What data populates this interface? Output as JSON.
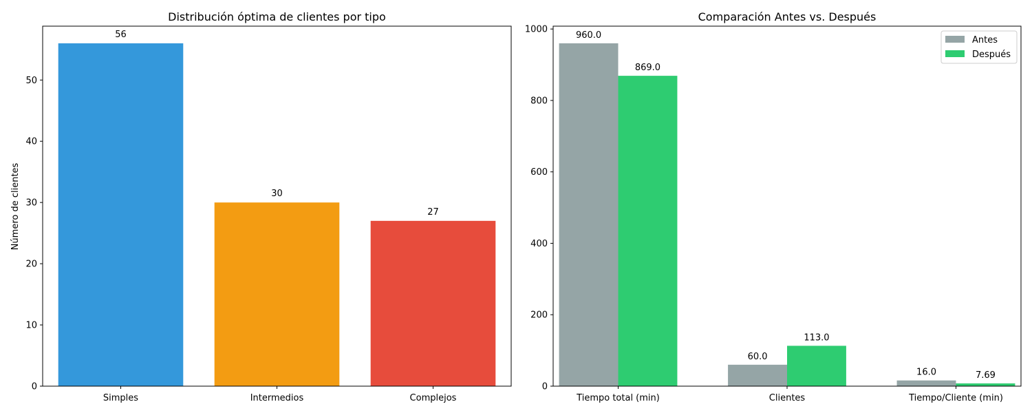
{
  "chart_data": [
    {
      "type": "bar",
      "title": "Distribución óptima de clientes por tipo",
      "xlabel": "",
      "ylabel": "Número de clientes",
      "categories": [
        "Simples",
        "Intermedios",
        "Complejos"
      ],
      "values": [
        56,
        30,
        27
      ],
      "value_labels": [
        "56",
        "30",
        "27"
      ],
      "colors": [
        "#3498db",
        "#f39c12",
        "#e74c3c"
      ],
      "ylim": [
        0,
        58.8
      ],
      "yticks": [
        0,
        10,
        20,
        30,
        40,
        50
      ],
      "grid": false
    },
    {
      "type": "bar",
      "title": "Comparación Antes vs. Después",
      "xlabel": "",
      "ylabel": "",
      "categories": [
        "Tiempo total (min)",
        "Clientes",
        "Tiempo/Cliente (min)"
      ],
      "series": [
        {
          "name": "Antes",
          "values": [
            960.0,
            60.0,
            16.0
          ],
          "value_labels": [
            "960.0",
            "60.0",
            "16.0"
          ],
          "color": "#95a5a6"
        },
        {
          "name": "Después",
          "values": [
            869.0,
            113.0,
            7.69
          ],
          "value_labels": [
            "869.0",
            "113.0",
            "7.69"
          ],
          "color": "#2ecc71"
        }
      ],
      "ylim": [
        0,
        1008
      ],
      "yticks": [
        0,
        200,
        400,
        600,
        800,
        1000
      ],
      "legend": "top-right",
      "grid": false
    }
  ]
}
